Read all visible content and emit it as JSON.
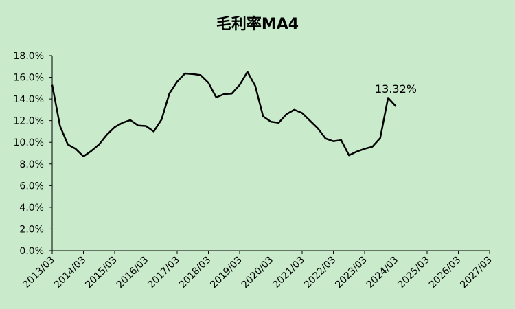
{
  "chart_data": {
    "type": "line",
    "title": "毛利率MA4",
    "categories": [
      "2013/03",
      null,
      null,
      null,
      "2014/03",
      null,
      null,
      null,
      "2015/03",
      null,
      null,
      null,
      "2016/03",
      null,
      null,
      null,
      "2017/03",
      null,
      null,
      null,
      "2018/03",
      null,
      null,
      null,
      "2019/03",
      null,
      null,
      null,
      "2020/03",
      null,
      null,
      null,
      "2021/03",
      null,
      null,
      null,
      "2022/03",
      null,
      null,
      null,
      "2023/03",
      null,
      null,
      null,
      "2024/03",
      null,
      null,
      null,
      "2025/03",
      null,
      null,
      null,
      "2026/03",
      null,
      null,
      null,
      "2027/03"
    ],
    "values": [
      15.3,
      11.5,
      9.8,
      9.4,
      8.7,
      9.2,
      9.8,
      10.7,
      11.4,
      11.8,
      12.05,
      11.55,
      11.5,
      11.0,
      12.1,
      14.5,
      15.6,
      16.35,
      16.3,
      16.2,
      15.5,
      14.15,
      14.45,
      14.5,
      15.3,
      16.5,
      15.2,
      12.4,
      11.9,
      11.8,
      12.6,
      13.0,
      12.7,
      12.0,
      11.3,
      10.35,
      10.1,
      10.2,
      8.8,
      9.15,
      9.4,
      9.6,
      10.4,
      14.1,
      13.32,
      null,
      null,
      null,
      null,
      null,
      null,
      null,
      null,
      null,
      null,
      null,
      null
    ],
    "value_labels": [
      null,
      null,
      null,
      null,
      null,
      null,
      null,
      null,
      null,
      null,
      null,
      null,
      null,
      null,
      null,
      null,
      null,
      null,
      null,
      null,
      null,
      null,
      null,
      null,
      null,
      null,
      null,
      null,
      null,
      null,
      null,
      null,
      null,
      null,
      null,
      null,
      null,
      null,
      null,
      null,
      null,
      null,
      null,
      null,
      "13.32%",
      null,
      null,
      null,
      null,
      null,
      null,
      null,
      null,
      null,
      null,
      null,
      null
    ],
    "color": "#000000",
    "ylim": [
      0,
      18
    ],
    "yticks": [
      {
        "value": 0,
        "label": "0.0%"
      },
      {
        "value": 2,
        "label": "2.0%"
      },
      {
        "value": 4,
        "label": "4.0%"
      },
      {
        "value": 6,
        "label": "6.0%"
      },
      {
        "value": 8,
        "label": "8.0%"
      },
      {
        "value": 10,
        "label": "10.0%"
      },
      {
        "value": 12,
        "label": "12.0%"
      },
      {
        "value": 14,
        "label": "14.0%"
      },
      {
        "value": 16,
        "label": "16.0%"
      },
      {
        "value": 18,
        "label": "18.0%"
      }
    ],
    "grid": false
  }
}
